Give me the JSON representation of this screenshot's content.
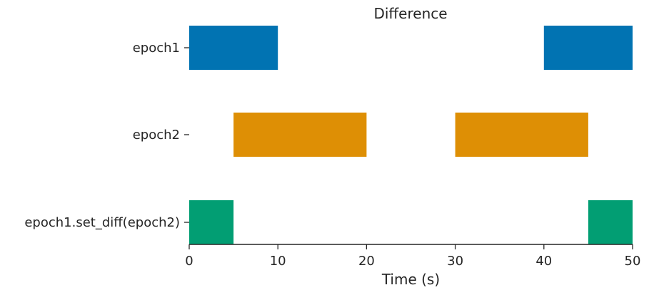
{
  "chart_data": {
    "type": "broken_barh",
    "title": "Difference",
    "xlabel": "Time (s)",
    "ylabel": "",
    "xlim": [
      0,
      50
    ],
    "xticks": [
      0,
      10,
      20,
      30,
      40,
      50
    ],
    "grid": false,
    "legend": "none",
    "series": [
      {
        "name": "epoch1",
        "color": "#0173b2",
        "intervals": [
          [
            0,
            10
          ],
          [
            40,
            50
          ]
        ]
      },
      {
        "name": "epoch2",
        "color": "#de8f05",
        "intervals": [
          [
            5,
            20
          ],
          [
            30,
            45
          ]
        ]
      },
      {
        "name": "epoch1.set_diff(epoch2)",
        "color": "#029e73",
        "intervals": [
          [
            0,
            5
          ],
          [
            45,
            50
          ]
        ]
      }
    ]
  }
}
